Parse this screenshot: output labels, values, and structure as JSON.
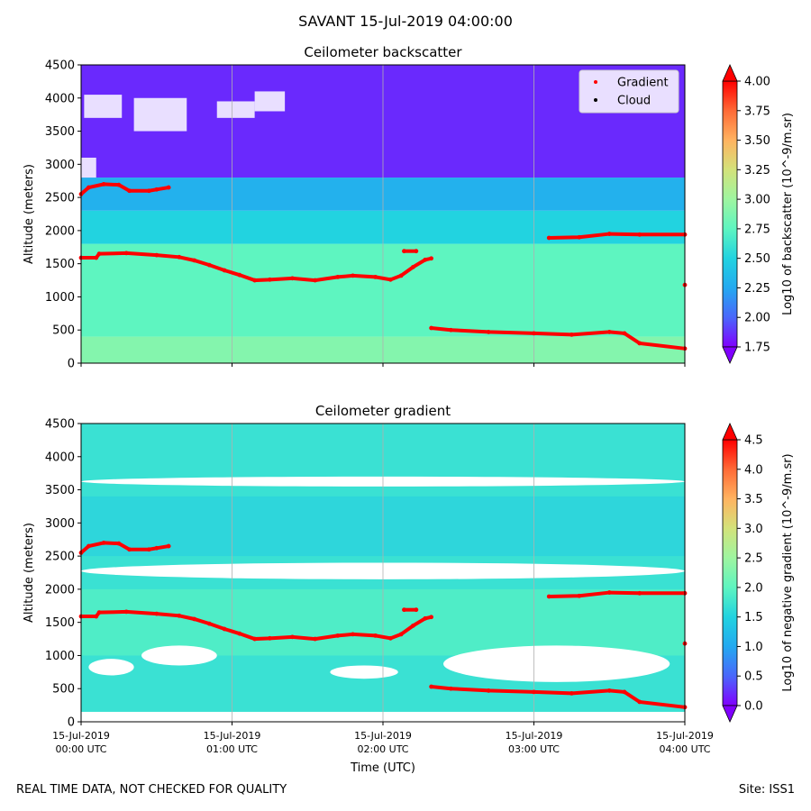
{
  "suptitle": "SAVANT 15-Jul-2019 04:00:00",
  "footer": {
    "quality_note": "REAL TIME DATA, NOT CHECKED FOR QUALITY",
    "site": "Site: ISS1"
  },
  "colormap": [
    "#8000ff",
    "#4a67fb",
    "#23a9f0",
    "#22d3e0",
    "#5ef5c0",
    "#9ef5a0",
    "#d3e27a",
    "#ffb360",
    "#ff6a36",
    "#ff0000"
  ],
  "chart_data": [
    {
      "type": "heatmap",
      "title": "Ceilometer backscatter",
      "ylabel": "Altitude (meters)",
      "ylim": [
        0,
        4500
      ],
      "yticks": [
        0,
        500,
        1000,
        1500,
        2000,
        2500,
        3000,
        3500,
        4000,
        4500
      ],
      "x_range_utc": [
        "00:00",
        "04:00"
      ],
      "xtick_times": [
        "00:00",
        "01:00",
        "02:00",
        "03:00",
        "04:00"
      ],
      "grid": "vertical lines at hourly ticks",
      "colorbar": {
        "label": "Log10 of backscatter (10^-9/m.sr)",
        "min": 1.75,
        "max": 4.0,
        "ticks": [
          1.75,
          2.0,
          2.25,
          2.5,
          2.75,
          3.0,
          3.25,
          3.5,
          3.75,
          4.0
        ],
        "tick_labels": [
          "1.75",
          "2.00",
          "2.25",
          "2.50",
          "2.75",
          "3.00",
          "3.25",
          "3.50",
          "3.75",
          "4.00"
        ],
        "extend": "both"
      },
      "legend": {
        "location": "top-right",
        "entries": [
          {
            "label": "Gradient",
            "color": "#ff0000"
          },
          {
            "label": "Cloud",
            "color": "#000000"
          }
        ]
      },
      "field_description": [
        {
          "altitude": [
            0,
            400
          ],
          "value": 2.9
        },
        {
          "altitude": [
            400,
            1800
          ],
          "value": 2.75
        },
        {
          "altitude": [
            1800,
            2300
          ],
          "value": 2.5
        },
        {
          "altitude": [
            2300,
            2800
          ],
          "value": 2.3
        },
        {
          "altitude": [
            2800,
            4500
          ],
          "value": 1.85
        }
      ],
      "series": [
        {
          "name": "Gradient",
          "points": [
            {
              "t": 0.0,
              "alt": 2550
            },
            {
              "t": 0.05,
              "alt": 2650
            },
            {
              "t": 0.15,
              "alt": 2700
            },
            {
              "t": 0.25,
              "alt": 2690
            },
            {
              "t": 0.32,
              "alt": 2600
            },
            {
              "t": 0.45,
              "alt": 2600
            },
            {
              "t": 0.5,
              "alt": 2620
            },
            {
              "t": 0.58,
              "alt": 2650
            }
          ]
        },
        {
          "name": "Gradient",
          "points": [
            {
              "t": 0.0,
              "alt": 1590
            },
            {
              "t": 0.1,
              "alt": 1590
            },
            {
              "t": 0.12,
              "alt": 1650
            },
            {
              "t": 0.3,
              "alt": 1660
            },
            {
              "t": 0.5,
              "alt": 1630
            },
            {
              "t": 0.65,
              "alt": 1600
            },
            {
              "t": 0.75,
              "alt": 1550
            },
            {
              "t": 0.85,
              "alt": 1480
            },
            {
              "t": 0.95,
              "alt": 1400
            },
            {
              "t": 1.05,
              "alt": 1330
            },
            {
              "t": 1.15,
              "alt": 1250
            },
            {
              "t": 1.25,
              "alt": 1260
            },
            {
              "t": 1.4,
              "alt": 1280
            },
            {
              "t": 1.55,
              "alt": 1250
            },
            {
              "t": 1.7,
              "alt": 1300
            },
            {
              "t": 1.8,
              "alt": 1320
            },
            {
              "t": 1.95,
              "alt": 1300
            },
            {
              "t": 2.05,
              "alt": 1260
            },
            {
              "t": 2.12,
              "alt": 1320
            },
            {
              "t": 2.2,
              "alt": 1450
            },
            {
              "t": 2.28,
              "alt": 1560
            },
            {
              "t": 2.32,
              "alt": 1580
            }
          ]
        },
        {
          "name": "Gradient",
          "points": [
            {
              "t": 2.14,
              "alt": 1690
            },
            {
              "t": 2.22,
              "alt": 1690
            }
          ]
        },
        {
          "name": "Gradient",
          "points": [
            {
              "t": 2.32,
              "alt": 530
            },
            {
              "t": 2.45,
              "alt": 500
            },
            {
              "t": 2.7,
              "alt": 470
            },
            {
              "t": 3.0,
              "alt": 450
            },
            {
              "t": 3.25,
              "alt": 430
            },
            {
              "t": 3.5,
              "alt": 470
            },
            {
              "t": 3.6,
              "alt": 450
            },
            {
              "t": 3.7,
              "alt": 300
            },
            {
              "t": 4.0,
              "alt": 220
            }
          ]
        },
        {
          "name": "Gradient",
          "points": [
            {
              "t": 3.1,
              "alt": 1890
            },
            {
              "t": 3.3,
              "alt": 1900
            },
            {
              "t": 3.5,
              "alt": 1950
            },
            {
              "t": 3.7,
              "alt": 1940
            },
            {
              "t": 4.0,
              "alt": 1940
            }
          ]
        },
        {
          "name": "Gradient",
          "points": [
            {
              "t": 4.0,
              "alt": 1180
            }
          ]
        }
      ]
    },
    {
      "type": "heatmap",
      "title": "Ceilometer gradient",
      "ylabel": "Altitude (meters)",
      "xlabel": "Time (UTC)",
      "ylim": [
        0,
        4500
      ],
      "yticks": [
        0,
        500,
        1000,
        1500,
        2000,
        2500,
        3000,
        3500,
        4000,
        4500
      ],
      "x_range_utc": [
        "00:00",
        "04:00"
      ],
      "xtick_labels": [
        [
          "15-Jul-2019",
          "00:00 UTC"
        ],
        [
          "15-Jul-2019",
          "01:00 UTC"
        ],
        [
          "15-Jul-2019",
          "02:00 UTC"
        ],
        [
          "15-Jul-2019",
          "03:00 UTC"
        ],
        [
          "15-Jul-2019",
          "04:00 UTC"
        ]
      ],
      "grid": "vertical lines at hourly ticks",
      "colorbar": {
        "label": "Log10 of negative gradient (10^-9/m.sr)",
        "min": 0.0,
        "max": 4.5,
        "ticks": [
          0.0,
          0.5,
          1.0,
          1.5,
          2.0,
          2.5,
          3.0,
          3.5,
          4.0,
          4.5
        ],
        "tick_labels": [
          "0.0",
          "0.5",
          "1.0",
          "1.5",
          "2.0",
          "2.5",
          "3.0",
          "3.5",
          "4.0",
          "4.5"
        ],
        "extend": "both"
      },
      "field_description": [
        {
          "altitude": [
            150,
            4500
          ],
          "value": 1.7,
          "note": "with blank (white) regions of no data"
        }
      ],
      "blank_regions": [
        {
          "t": [
            0.0,
            4.0
          ],
          "alt": [
            2150,
            2400
          ]
        },
        {
          "t": [
            0.0,
            4.0
          ],
          "alt": [
            3550,
            3700
          ]
        },
        {
          "t": [
            2.4,
            3.9
          ],
          "alt": [
            600,
            1150
          ]
        },
        {
          "t": [
            0.4,
            0.9
          ],
          "alt": [
            850,
            1150
          ]
        },
        {
          "t": [
            1.65,
            2.1
          ],
          "alt": [
            650,
            850
          ]
        },
        {
          "t": [
            0.05,
            0.35
          ],
          "alt": [
            700,
            950
          ]
        }
      ],
      "series_same_as_panel": 1
    }
  ]
}
